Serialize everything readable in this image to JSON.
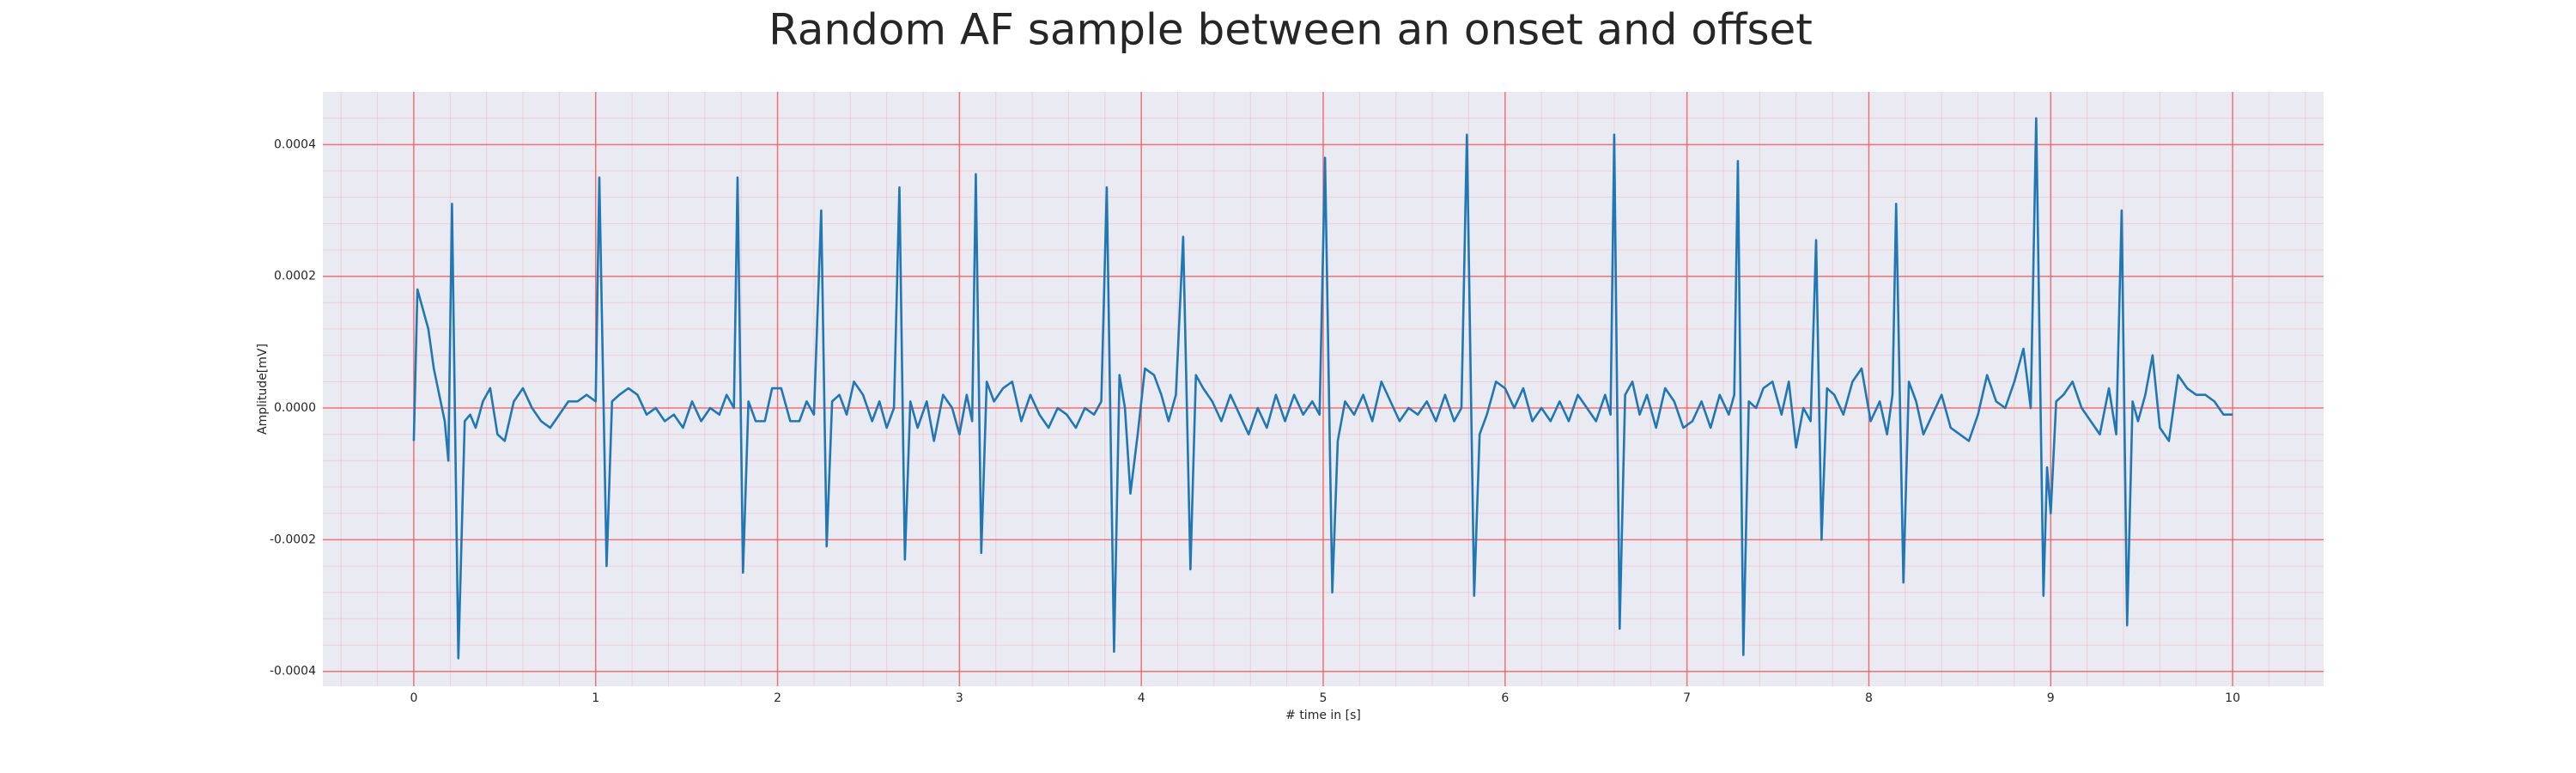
{
  "chart_data": {
    "type": "line",
    "title": "Random AF sample between an onset and offset",
    "xlabel": "# time in [s]",
    "ylabel": "Amplitude[mV]",
    "color": "#1f77b4",
    "grid": true,
    "grid_color": "#f06060",
    "minor_grid": true,
    "xlim": [
      -0.5,
      10.5
    ],
    "ylim": [
      -0.0004225,
      0.00048
    ],
    "xticks": [
      0,
      1,
      2,
      3,
      4,
      5,
      6,
      7,
      8,
      9,
      10
    ],
    "yticks": [
      -0.0004,
      -0.0002,
      {
        "value": 0,
        "label": "0.0000"
      },
      0.0002,
      0.0004
    ],
    "x": [
      0,
      0.02,
      0.05,
      0.08,
      0.11,
      0.14,
      0.17,
      0.19,
      0.21,
      0.245,
      0.28,
      0.31,
      0.34,
      0.38,
      0.42,
      0.46,
      0.5,
      0.55,
      0.6,
      0.65,
      0.7,
      0.75,
      0.8,
      0.85,
      0.9,
      0.95,
      1.0,
      1.02,
      1.06,
      1.09,
      1.13,
      1.18,
      1.23,
      1.28,
      1.33,
      1.38,
      1.43,
      1.48,
      1.53,
      1.58,
      1.63,
      1.68,
      1.72,
      1.76,
      1.78,
      1.81,
      1.84,
      1.88,
      1.93,
      1.97,
      2.02,
      2.07,
      2.12,
      2.16,
      2.2,
      2.24,
      2.27,
      2.3,
      2.34,
      2.38,
      2.42,
      2.47,
      2.52,
      2.56,
      2.6,
      2.64,
      2.67,
      2.7,
      2.73,
      2.77,
      2.82,
      2.86,
      2.91,
      2.96,
      3.0,
      3.04,
      3.07,
      3.09,
      3.12,
      3.15,
      3.19,
      3.24,
      3.29,
      3.34,
      3.39,
      3.44,
      3.49,
      3.54,
      3.59,
      3.64,
      3.69,
      3.74,
      3.78,
      3.81,
      3.85,
      3.88,
      3.91,
      3.94,
      3.98,
      4.02,
      4.07,
      4.11,
      4.15,
      4.19,
      4.23,
      4.27,
      4.3,
      4.34,
      4.39,
      4.44,
      4.49,
      4.54,
      4.59,
      4.64,
      4.69,
      4.74,
      4.79,
      4.84,
      4.89,
      4.94,
      4.98,
      5.01,
      5.05,
      5.08,
      5.12,
      5.17,
      5.22,
      5.27,
      5.32,
      5.37,
      5.42,
      5.47,
      5.52,
      5.57,
      5.62,
      5.67,
      5.72,
      5.76,
      5.79,
      5.83,
      5.86,
      5.9,
      5.95,
      6.0,
      6.05,
      6.1,
      6.15,
      6.2,
      6.25,
      6.3,
      6.35,
      6.4,
      6.45,
      6.5,
      6.55,
      6.58,
      6.6,
      6.63,
      6.66,
      6.7,
      6.74,
      6.78,
      6.83,
      6.88,
      6.93,
      6.98,
      7.03,
      7.08,
      7.13,
      7.18,
      7.23,
      7.26,
      7.28,
      7.31,
      7.34,
      7.38,
      7.42,
      7.47,
      7.52,
      7.56,
      7.6,
      7.64,
      7.68,
      7.71,
      7.74,
      7.77,
      7.81,
      7.86,
      7.91,
      7.96,
      8.01,
      8.06,
      8.1,
      8.13,
      8.15,
      8.19,
      8.22,
      8.26,
      8.3,
      8.35,
      8.4,
      8.45,
      8.5,
      8.55,
      8.6,
      8.65,
      8.7,
      8.75,
      8.8,
      8.85,
      8.89,
      8.92,
      8.96,
      8.98,
      9.0,
      9.03,
      9.07,
      9.12,
      9.17,
      9.22,
      9.27,
      9.32,
      9.36,
      9.39,
      9.42,
      9.45,
      9.48,
      9.52,
      9.56,
      9.6,
      9.65,
      9.7,
      9.75,
      9.8,
      9.85,
      9.9,
      9.95,
      10.0
    ],
    "values": [
      -5e-05,
      0.00018,
      0.00015,
      0.00012,
      6e-05,
      2e-05,
      -2e-05,
      -8e-05,
      0.00031,
      -0.00038,
      -2e-05,
      -1e-05,
      -3e-05,
      1e-05,
      3e-05,
      -4e-05,
      -5e-05,
      1e-05,
      3e-05,
      0,
      -2e-05,
      -3e-05,
      -1e-05,
      1e-05,
      1e-05,
      2e-05,
      1e-05,
      0.00035,
      -0.00024,
      1e-05,
      2e-05,
      3e-05,
      2e-05,
      -1e-05,
      0,
      -2e-05,
      -1e-05,
      -3e-05,
      1e-05,
      -2e-05,
      0,
      -1e-05,
      2e-05,
      0,
      0.00035,
      -0.00025,
      1e-05,
      -2e-05,
      -2e-05,
      3e-05,
      3e-05,
      -2e-05,
      -2e-05,
      1e-05,
      -1e-05,
      0.0003,
      -0.00021,
      1e-05,
      2e-05,
      -1e-05,
      4e-05,
      2e-05,
      -2e-05,
      1e-05,
      -3e-05,
      0,
      0.000335,
      -0.00023,
      1e-05,
      -3e-05,
      1e-05,
      -5e-05,
      2e-05,
      0,
      -4e-05,
      2e-05,
      -2e-05,
      0.000355,
      -0.00022,
      4e-05,
      1e-05,
      3e-05,
      4e-05,
      -2e-05,
      2e-05,
      -1e-05,
      -3e-05,
      0,
      -1e-05,
      -3e-05,
      0,
      -1e-05,
      1e-05,
      0.000335,
      -0.00037,
      5e-05,
      0,
      -0.00013,
      -4e-05,
      6e-05,
      5e-05,
      2e-05,
      -2e-05,
      2e-05,
      0.00026,
      -0.000245,
      5e-05,
      3e-05,
      1e-05,
      -2e-05,
      2e-05,
      -1e-05,
      -4e-05,
      0,
      -3e-05,
      2e-05,
      -2e-05,
      2e-05,
      -1e-05,
      1e-05,
      -1e-05,
      0.00038,
      -0.00028,
      -5e-05,
      1e-05,
      -1e-05,
      2e-05,
      -2e-05,
      4e-05,
      1e-05,
      -2e-05,
      0,
      -1e-05,
      1e-05,
      -2e-05,
      2e-05,
      -2e-05,
      0,
      0.000415,
      -0.000285,
      -4e-05,
      -1e-05,
      4e-05,
      3e-05,
      0,
      3e-05,
      -2e-05,
      0,
      -2e-05,
      1e-05,
      -2e-05,
      2e-05,
      0,
      -2e-05,
      2e-05,
      -1e-05,
      0.000415,
      -0.000335,
      2e-05,
      4e-05,
      -1e-05,
      2e-05,
      -3e-05,
      3e-05,
      1e-05,
      -3e-05,
      -2e-05,
      1e-05,
      -3e-05,
      2e-05,
      -1e-05,
      2e-05,
      0.000375,
      -0.000375,
      1e-05,
      0,
      3e-05,
      4e-05,
      -1e-05,
      4e-05,
      -6e-05,
      0,
      -2e-05,
      0.000255,
      -0.0002,
      3e-05,
      2e-05,
      -1e-05,
      4e-05,
      6e-05,
      -2e-05,
      1e-05,
      -4e-05,
      2e-05,
      0.00031,
      -0.000265,
      4e-05,
      1e-05,
      -4e-05,
      -1e-05,
      2e-05,
      -3e-05,
      -4e-05,
      -5e-05,
      -1e-05,
      5e-05,
      1e-05,
      0,
      4e-05,
      9e-05,
      0,
      0.00044,
      -0.000285,
      -9e-05,
      -0.00016,
      1e-05,
      2e-05,
      4e-05,
      0,
      -2e-05,
      -4e-05,
      3e-05,
      -4e-05,
      0.0003,
      -0.00033,
      1e-05,
      -2e-05,
      2e-05,
      8e-05,
      -3e-05,
      -5e-05,
      5e-05,
      3e-05,
      2e-05,
      2e-05,
      1e-05,
      -1e-05,
      -1e-05
    ]
  }
}
